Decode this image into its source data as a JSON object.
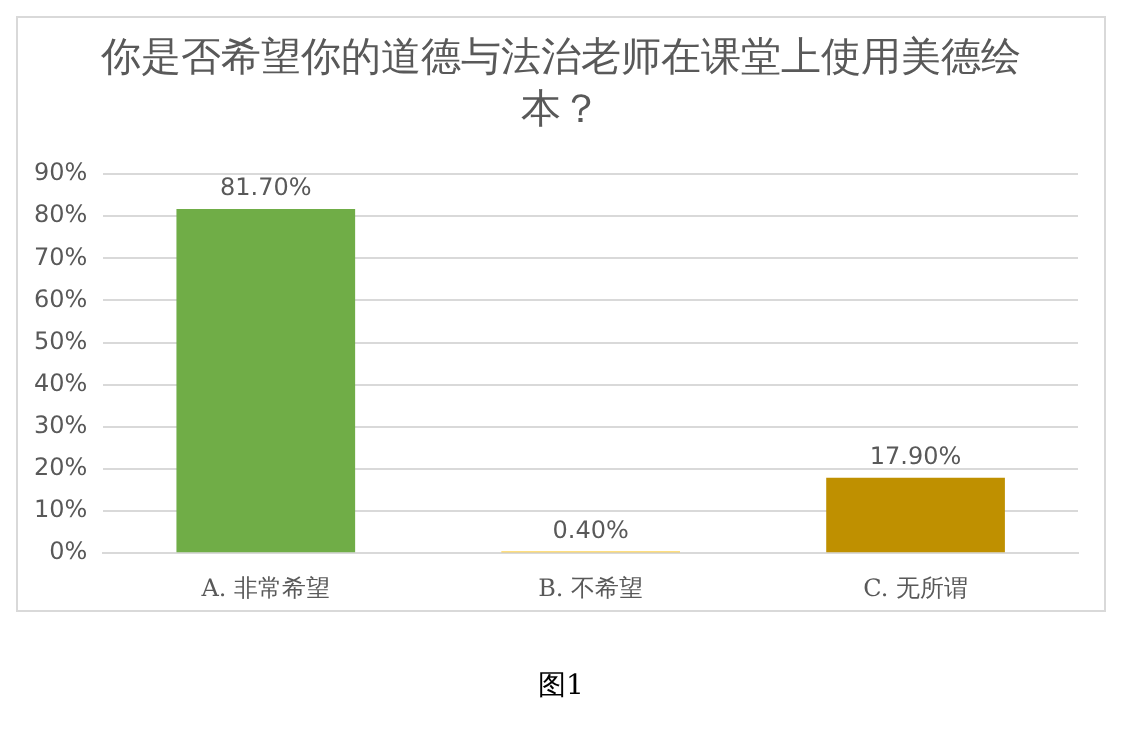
{
  "chart_data": {
    "type": "bar",
    "title": "你是否希望你的道德与法治老师在课堂上使用美德绘本？",
    "categories": [
      "A. 非常希望",
      "B. 不希望",
      "C. 无所谓"
    ],
    "values": [
      81.7,
      0.4,
      17.9
    ],
    "colors": [
      "#70ad47",
      "#ffc000",
      "#bf9000"
    ],
    "value_labels": [
      "81.70%",
      "0.40%",
      "17.90%"
    ],
    "ylim": [
      0,
      90
    ],
    "yticks": [
      {
        "value": 0,
        "label": "0%"
      },
      {
        "value": 10,
        "label": "10%"
      },
      {
        "value": 20,
        "label": "20%"
      },
      {
        "value": 30,
        "label": "30%"
      },
      {
        "value": 40,
        "label": "40%"
      },
      {
        "value": 50,
        "label": "50%"
      },
      {
        "value": 60,
        "label": "60%"
      },
      {
        "value": 70,
        "label": "70%"
      },
      {
        "value": 80,
        "label": "80%"
      },
      {
        "value": 90,
        "label": "90%"
      }
    ],
    "grid": "y",
    "legend": false,
    "annotations": [
      "图1"
    ]
  }
}
